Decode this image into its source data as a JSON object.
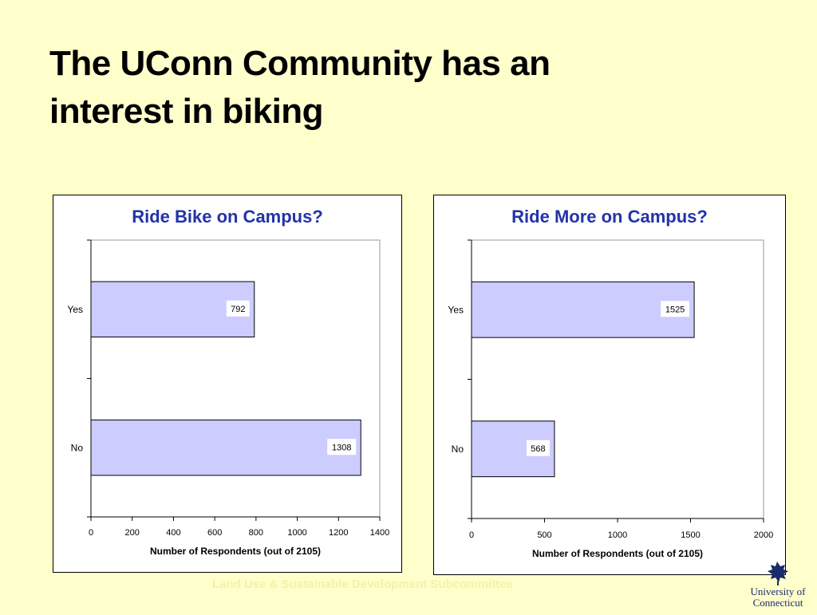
{
  "slide": {
    "title": "The UConn Community has an interest in biking",
    "footer": "Land Use & Sustainable Development Subcommittee",
    "logo_line1": "University of",
    "logo_line2": "Connecticut"
  },
  "colors": {
    "background": "#ffffcc",
    "bar_fill": "#ccccff",
    "chart_title": "#2233aa"
  },
  "chart_data": [
    {
      "type": "bar",
      "orientation": "horizontal",
      "title": "Ride Bike on Campus?",
      "categories": [
        "Yes",
        "No"
      ],
      "values": [
        792,
        1308
      ],
      "xlabel": "Number of Respondents (out of 2105)",
      "ylabel": "",
      "xlim": [
        0,
        1400
      ],
      "xticks": [
        0,
        200,
        400,
        600,
        800,
        1000,
        1200,
        1400
      ],
      "grid": false,
      "legend": "none"
    },
    {
      "type": "bar",
      "orientation": "horizontal",
      "title": "Ride More on Campus?",
      "categories": [
        "Yes",
        "No"
      ],
      "values": [
        1525,
        568
      ],
      "xlabel": "Number of Respondents (out of 2105)",
      "ylabel": "",
      "xlim": [
        0,
        2000
      ],
      "xticks": [
        0,
        500,
        1000,
        1500,
        2000
      ],
      "grid": false,
      "legend": "none"
    }
  ]
}
